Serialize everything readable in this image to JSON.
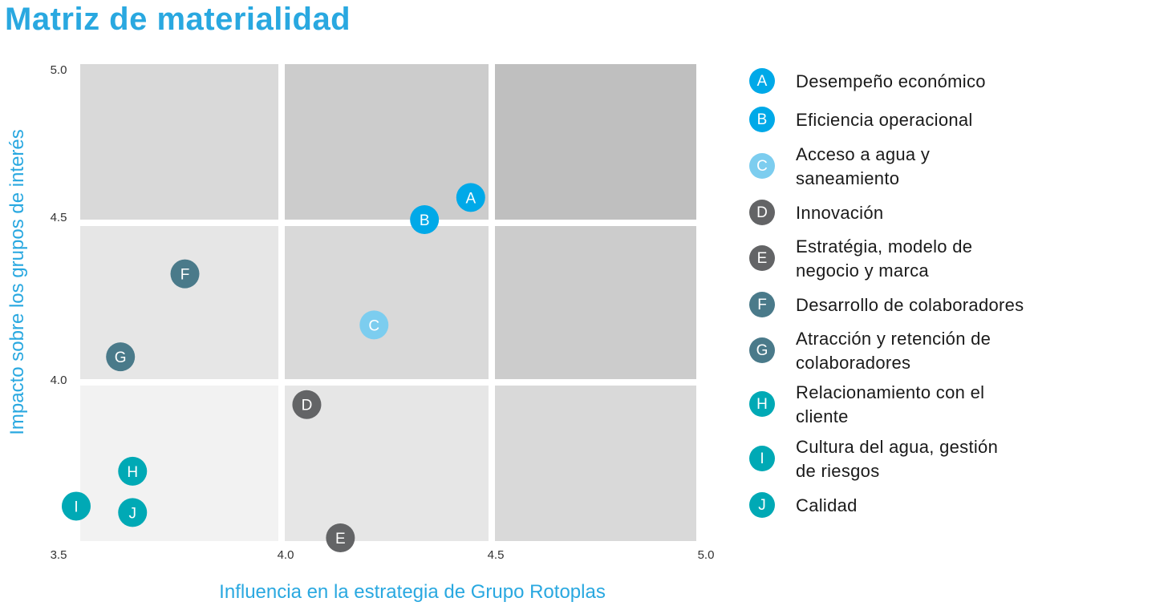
{
  "title": "Matriz de materialidad",
  "chart_data": {
    "type": "scatter",
    "title": "Matriz de materialidad",
    "xlabel": "Influencia en la estrategia de Grupo Rotoplas",
    "ylabel": "Impacto sobre los grupos de interés",
    "xlim": [
      3.5,
      5.0
    ],
    "ylim": [
      3.5,
      5.0
    ],
    "x_ticks": [
      "3.5",
      "4.0",
      "4.5",
      "5.0"
    ],
    "y_ticks": [
      "5.0",
      "4.5",
      "4.0"
    ],
    "quadrant_breaks_x": [
      4.0,
      4.5
    ],
    "quadrant_breaks_y": [
      4.0,
      4.5
    ],
    "quadrant_colors": [
      [
        "#d9d9d9",
        "#cccccc",
        "#bfbfbf"
      ],
      [
        "#e6e6e6",
        "#d9d9d9",
        "#cccccc"
      ],
      [
        "#f2f2f2",
        "#e6e6e6",
        "#d9d9d9"
      ]
    ],
    "points": [
      {
        "letter": "A",
        "label": [
          "Desempeño económico"
        ],
        "x": 4.45,
        "y": 4.58,
        "color": "#00a9e8"
      },
      {
        "letter": "B",
        "label": [
          "Eficiencia operacional"
        ],
        "x": 4.34,
        "y": 4.51,
        "color": "#00a9e8"
      },
      {
        "letter": "C",
        "label": [
          "Acceso a agua y",
          "saneamiento"
        ],
        "x": 4.22,
        "y": 4.18,
        "color": "#7ccdef"
      },
      {
        "letter": "D",
        "label": [
          "Innovación"
        ],
        "x": 4.06,
        "y": 3.93,
        "color": "#636466"
      },
      {
        "letter": "E",
        "label": [
          "Estratégia, modelo de",
          "negocio y marca"
        ],
        "x": 4.14,
        "y": 3.51,
        "color": "#636466"
      },
      {
        "letter": "F",
        "label": [
          "Desarrollo de colaboradores"
        ],
        "x": 3.76,
        "y": 4.34,
        "color": "#4a7a8a"
      },
      {
        "letter": "G",
        "label": [
          "Atracción y retención de",
          "colaboradores"
        ],
        "x": 3.6,
        "y": 4.08,
        "color": "#4a7a8a"
      },
      {
        "letter": "H",
        "label": [
          "Relacionamiento con el",
          "cliente"
        ],
        "x": 3.63,
        "y": 3.72,
        "color": "#00a9b5"
      },
      {
        "letter": "I",
        "label": [
          "Cultura del agua, gestión",
          "de riesgos"
        ],
        "x": 3.49,
        "y": 3.61,
        "color": "#00a9b5"
      },
      {
        "letter": "J",
        "label": [
          "Calidad"
        ],
        "x": 3.63,
        "y": 3.59,
        "color": "#00a9b5"
      }
    ]
  }
}
